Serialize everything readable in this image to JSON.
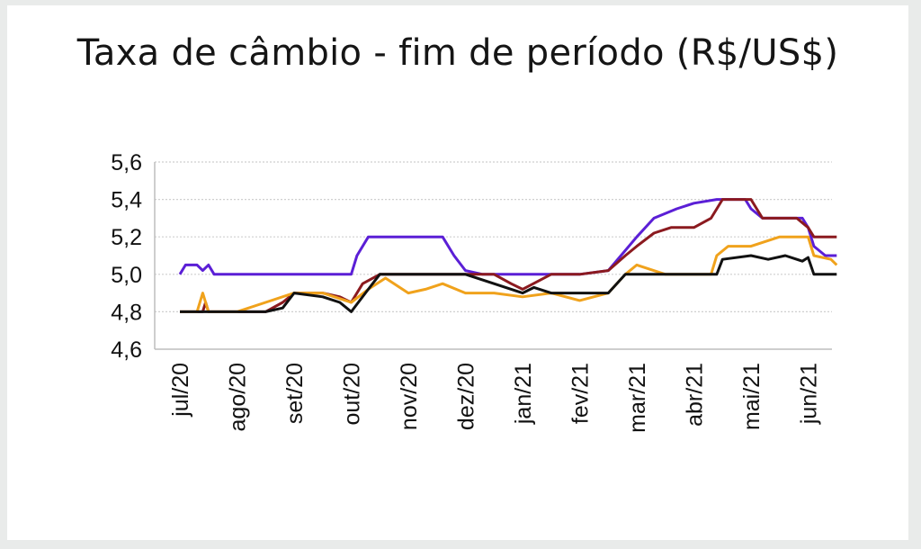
{
  "chart_data": {
    "type": "line",
    "title": "Taxa de câmbio - fim de período (R$/US$)",
    "xlabel": "",
    "ylabel": "",
    "ylim": [
      4.6,
      5.6
    ],
    "yticks": [
      "4,6",
      "4,8",
      "5,0",
      "5,2",
      "5,4",
      "5,6"
    ],
    "ytick_values": [
      4.6,
      4.8,
      5.0,
      5.2,
      5.4,
      5.6
    ],
    "categories": [
      "jul/20",
      "ago/20",
      "set/20",
      "out/20",
      "nov/20",
      "dez/20",
      "jan/21",
      "fev/21",
      "mar/21",
      "abr/21",
      "mai/21",
      "jun/21"
    ],
    "grid": true,
    "legend": "none",
    "series": [
      {
        "color": "#5b1fd6",
        "points": [
          [
            0,
            5.0
          ],
          [
            0.1,
            5.05
          ],
          [
            0.3,
            5.05
          ],
          [
            0.4,
            5.02
          ],
          [
            0.5,
            5.05
          ],
          [
            0.6,
            5.0
          ],
          [
            1,
            5.0
          ],
          [
            2,
            5.0
          ],
          [
            3,
            5.0
          ],
          [
            3.1,
            5.1
          ],
          [
            3.3,
            5.2
          ],
          [
            4,
            5.2
          ],
          [
            4.6,
            5.2
          ],
          [
            4.8,
            5.1
          ],
          [
            5,
            5.02
          ],
          [
            5.3,
            5.0
          ],
          [
            6,
            5.0
          ],
          [
            6.5,
            5.0
          ],
          [
            7,
            5.0
          ],
          [
            7.5,
            5.02
          ],
          [
            8,
            5.2
          ],
          [
            8.3,
            5.3
          ],
          [
            8.7,
            5.35
          ],
          [
            9,
            5.38
          ],
          [
            9.4,
            5.4
          ],
          [
            9.9,
            5.4
          ],
          [
            10.0,
            5.35
          ],
          [
            10.2,
            5.3
          ],
          [
            10.5,
            5.3
          ],
          [
            10.9,
            5.3
          ],
          [
            11.0,
            5.25
          ],
          [
            11.1,
            5.15
          ],
          [
            11.3,
            5.1
          ],
          [
            11.5,
            5.1
          ]
        ]
      },
      {
        "color": "#8b1a1f",
        "points": [
          [
            0,
            4.8
          ],
          [
            0.4,
            4.8
          ],
          [
            0.45,
            4.85
          ],
          [
            0.5,
            4.8
          ],
          [
            1,
            4.8
          ],
          [
            1.5,
            4.8
          ],
          [
            1.8,
            4.85
          ],
          [
            2,
            4.9
          ],
          [
            2.5,
            4.9
          ],
          [
            2.8,
            4.88
          ],
          [
            3,
            4.85
          ],
          [
            3.2,
            4.95
          ],
          [
            3.5,
            5.0
          ],
          [
            4,
            5.0
          ],
          [
            4.5,
            5.0
          ],
          [
            5,
            5.0
          ],
          [
            5.5,
            5.0
          ],
          [
            5.8,
            4.95
          ],
          [
            6,
            4.92
          ],
          [
            6.5,
            5.0
          ],
          [
            7,
            5.0
          ],
          [
            7.5,
            5.02
          ],
          [
            7.8,
            5.1
          ],
          [
            8,
            5.15
          ],
          [
            8.3,
            5.22
          ],
          [
            8.6,
            5.25
          ],
          [
            9,
            5.25
          ],
          [
            9.3,
            5.3
          ],
          [
            9.5,
            5.4
          ],
          [
            10,
            5.4
          ],
          [
            10.2,
            5.3
          ],
          [
            10.8,
            5.3
          ],
          [
            11.0,
            5.25
          ],
          [
            11.1,
            5.2
          ],
          [
            11.5,
            5.2
          ]
        ]
      },
      {
        "color": "#f0a21c",
        "points": [
          [
            0,
            4.8
          ],
          [
            0.3,
            4.8
          ],
          [
            0.4,
            4.9
          ],
          [
            0.5,
            4.8
          ],
          [
            1,
            4.8
          ],
          [
            1.5,
            4.85
          ],
          [
            2,
            4.9
          ],
          [
            2.5,
            4.9
          ],
          [
            3,
            4.85
          ],
          [
            3.3,
            4.92
          ],
          [
            3.6,
            4.98
          ],
          [
            4,
            4.9
          ],
          [
            4.3,
            4.92
          ],
          [
            4.6,
            4.95
          ],
          [
            5,
            4.9
          ],
          [
            5.5,
            4.9
          ],
          [
            6,
            4.88
          ],
          [
            6.5,
            4.9
          ],
          [
            7,
            4.86
          ],
          [
            7.5,
            4.9
          ],
          [
            7.8,
            5.0
          ],
          [
            8,
            5.05
          ],
          [
            8.5,
            5.0
          ],
          [
            9,
            5.0
          ],
          [
            9.3,
            5.0
          ],
          [
            9.4,
            5.1
          ],
          [
            9.6,
            5.15
          ],
          [
            10,
            5.15
          ],
          [
            10.5,
            5.2
          ],
          [
            11,
            5.2
          ],
          [
            11.1,
            5.1
          ],
          [
            11.4,
            5.08
          ],
          [
            11.5,
            5.05
          ]
        ]
      },
      {
        "color": "#111111",
        "points": [
          [
            0,
            4.8
          ],
          [
            0.4,
            4.8
          ],
          [
            0.5,
            4.8
          ],
          [
            1,
            4.8
          ],
          [
            1.5,
            4.8
          ],
          [
            1.8,
            4.82
          ],
          [
            2,
            4.9
          ],
          [
            2.5,
            4.88
          ],
          [
            2.8,
            4.85
          ],
          [
            3,
            4.8
          ],
          [
            3.3,
            4.92
          ],
          [
            3.5,
            5.0
          ],
          [
            4,
            5.0
          ],
          [
            4.5,
            5.0
          ],
          [
            5,
            5.0
          ],
          [
            5.5,
            4.95
          ],
          [
            6,
            4.9
          ],
          [
            6.2,
            4.93
          ],
          [
            6.5,
            4.9
          ],
          [
            7,
            4.9
          ],
          [
            7.5,
            4.9
          ],
          [
            7.8,
            5.0
          ],
          [
            8.5,
            5.0
          ],
          [
            9,
            5.0
          ],
          [
            9.4,
            5.0
          ],
          [
            9.5,
            5.08
          ],
          [
            10,
            5.1
          ],
          [
            10.3,
            5.08
          ],
          [
            10.6,
            5.1
          ],
          [
            10.9,
            5.07
          ],
          [
            11,
            5.09
          ],
          [
            11.1,
            5.0
          ],
          [
            11.5,
            5.0
          ]
        ]
      }
    ]
  }
}
